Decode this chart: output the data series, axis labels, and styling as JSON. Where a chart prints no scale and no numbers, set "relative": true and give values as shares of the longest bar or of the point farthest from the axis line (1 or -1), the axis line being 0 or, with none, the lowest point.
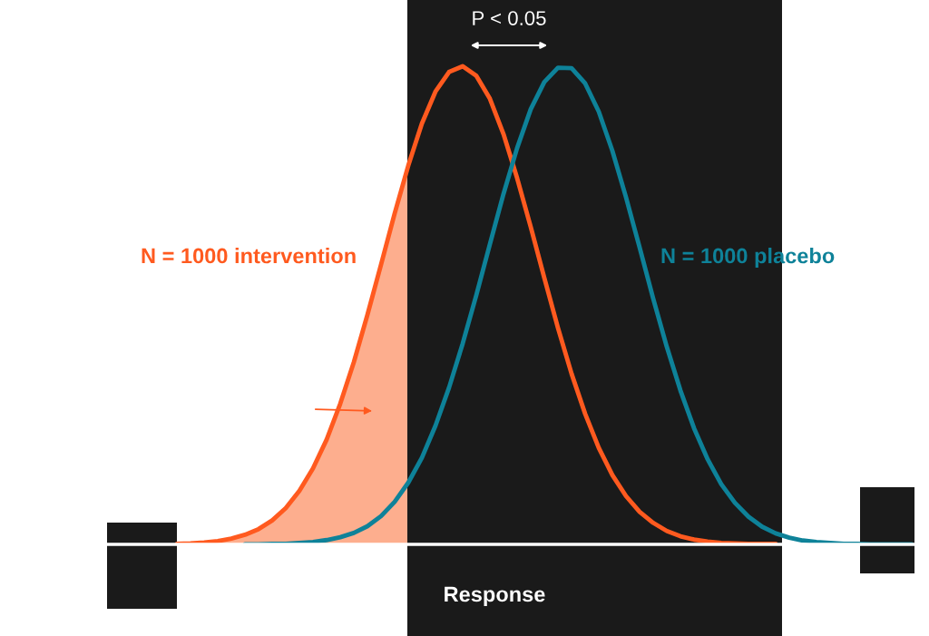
{
  "chart_data": {
    "type": "line",
    "relative": true,
    "xlabel": "Response",
    "annotations": [
      "P < 0.05"
    ],
    "categories": [
      null,
      null,
      null,
      null,
      null,
      null,
      null,
      null,
      null,
      null,
      null,
      null,
      null,
      null,
      null,
      null,
      null,
      null,
      null,
      null,
      null,
      null,
      null,
      null,
      null,
      null,
      null,
      null,
      null,
      null,
      null,
      null,
      null,
      null,
      null,
      null,
      null,
      null,
      null,
      null,
      null,
      null,
      null,
      null,
      null,
      null,
      null,
      null,
      null,
      null,
      null,
      null,
      null,
      null,
      null
    ],
    "series": [
      {
        "name": "N = 1000 intervention",
        "color": "#ff5a1f",
        "values": [
          0.001,
          0.002,
          0.004,
          0.007,
          0.012,
          0.02,
          0.032,
          0.05,
          0.076,
          0.112,
          0.159,
          0.219,
          0.294,
          0.381,
          0.48,
          0.585,
          0.692,
          0.792,
          0.88,
          0.947,
          0.988,
          1.0,
          0.98,
          0.932,
          0.858,
          0.766,
          0.664,
          0.557,
          0.453,
          0.357,
          0.273,
          0.202,
          0.145,
          0.101,
          0.068,
          0.045,
          0.028,
          0.017,
          0.01,
          0.006,
          0.003,
          0.002,
          0.001,
          0.001,
          0.001,
          null,
          null,
          null,
          null,
          null,
          null,
          null,
          null,
          null,
          null
        ]
      },
      {
        "name": "N = 1000 placebo",
        "color": "#0e8299",
        "values": [
          null,
          null,
          null,
          null,
          null,
          0,
          0,
          0.001,
          0.001,
          0.003,
          0.005,
          0.009,
          0.015,
          0.024,
          0.038,
          0.059,
          0.089,
          0.129,
          0.181,
          0.248,
          0.328,
          0.42,
          0.521,
          0.628,
          0.733,
          0.829,
          0.91,
          0.967,
          0.997,
          0.996,
          0.964,
          0.905,
          0.823,
          0.726,
          0.621,
          0.514,
          0.413,
          0.322,
          0.243,
          0.178,
          0.126,
          0.087,
          0.058,
          0.037,
          0.023,
          0.014,
          0.008,
          0.005,
          0.003,
          0.001,
          0.001,
          0,
          0,
          0,
          0
        ]
      }
    ]
  }
}
